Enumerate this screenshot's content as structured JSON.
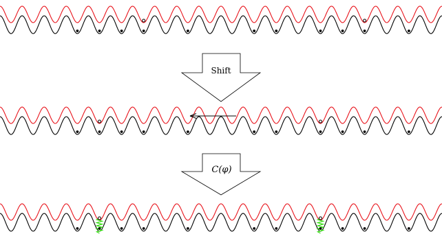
{
  "diagram": {
    "wells_per_row": 20,
    "colors": {
      "red_lattice": "#e8141c",
      "black_lattice": "#000000",
      "spring": "#33dd11",
      "atom": "#000000"
    },
    "rows": [
      {
        "id": "initial",
        "black_filled": [
          3,
          4,
          5,
          6,
          8,
          11,
          12,
          14,
          15,
          16,
          18
        ],
        "red_open": [
          6,
          16
        ],
        "springs": [],
        "arrow": false
      },
      {
        "id": "shifted",
        "black_filled": [
          3,
          4,
          5,
          6,
          8,
          11,
          12,
          14,
          15,
          16,
          18
        ],
        "red_open": [
          4,
          14
        ],
        "springs": [],
        "arrow": true
      },
      {
        "id": "coupled",
        "black_filled": [
          3,
          4,
          5,
          6,
          8,
          11,
          12,
          14,
          15,
          16,
          18
        ],
        "red_open": [
          4,
          14
        ],
        "springs": [
          4,
          14
        ],
        "arrow": false
      }
    ],
    "steps": [
      {
        "id": "shift-step",
        "label": "Shift"
      },
      {
        "id": "coupling-step",
        "label": "C(φ)"
      }
    ]
  }
}
